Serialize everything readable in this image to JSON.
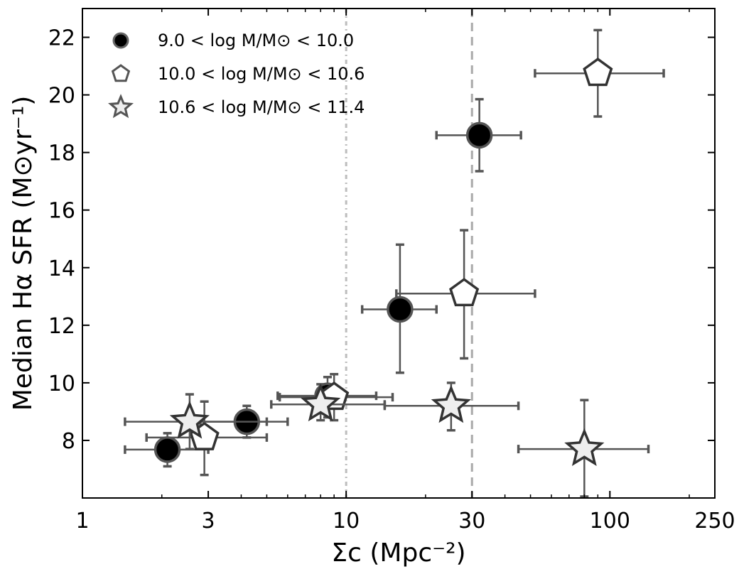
{
  "chart_data": {
    "type": "scatter",
    "title": "",
    "xlabel": "Σc (Mpc⁻²)",
    "ylabel": "Median Hα SFR (M⊙yr⁻¹)",
    "xscale": "log",
    "xlim": [
      1,
      250
    ],
    "ylim": [
      6,
      23
    ],
    "xticks": [
      1,
      3,
      10,
      30,
      100,
      250
    ],
    "xtick_labels": [
      "1",
      "3",
      "10",
      "30",
      "100",
      "250"
    ],
    "yticks": [
      8,
      10,
      12,
      14,
      16,
      18,
      20,
      22
    ],
    "ytick_labels": [
      "8",
      "10",
      "12",
      "14",
      "16",
      "18",
      "20",
      "22"
    ],
    "vlines": [
      {
        "x": 10,
        "style": "dash-dot",
        "color": "#bdbdbd"
      },
      {
        "x": 30,
        "style": "dashed",
        "color": "#aaaaaa"
      }
    ],
    "legend_position": "top-left",
    "series": [
      {
        "name": "9.0 < log M/M⊙ < 10.0",
        "marker": "circle",
        "fill": "#000000",
        "edge": "#555555",
        "points": [
          {
            "x": 2.1,
            "y": 7.68,
            "xerr": [
              1.45,
              3.0
            ],
            "yerr": [
              7.1,
              8.25
            ]
          },
          {
            "x": 4.2,
            "y": 8.65,
            "xerr": [
              2.8,
              6.0
            ],
            "yerr": [
              8.1,
              9.2
            ]
          },
          {
            "x": 8.5,
            "y": 9.55,
            "xerr": [
              5.5,
              13.0
            ],
            "yerr": [
              8.8,
              10.2
            ]
          },
          {
            "x": 16.0,
            "y": 12.55,
            "xerr": [
              11.5,
              22.0
            ],
            "yerr": [
              10.35,
              14.8
            ]
          },
          {
            "x": 32.0,
            "y": 18.6,
            "xerr": [
              22.0,
              46.0
            ],
            "yerr": [
              17.35,
              19.85
            ]
          }
        ]
      },
      {
        "name": "10.0 < log M/M⊙ < 10.6",
        "marker": "pentagon",
        "fill": "#ffffff",
        "edge": "#333333",
        "points": [
          {
            "x": 2.9,
            "y": 8.1,
            "xerr": [
              1.75,
              5.0
            ],
            "yerr": [
              6.8,
              9.35
            ]
          },
          {
            "x": 9.0,
            "y": 9.5,
            "xerr": [
              5.6,
              15.0
            ],
            "yerr": [
              8.7,
              10.3
            ]
          },
          {
            "x": 28.0,
            "y": 13.1,
            "xerr": [
              15.5,
              52.0
            ],
            "yerr": [
              10.85,
              15.3
            ]
          },
          {
            "x": 90.0,
            "y": 20.75,
            "xerr": [
              52.0,
              160.0
            ],
            "yerr": [
              19.25,
              22.25
            ]
          }
        ]
      },
      {
        "name": "10.6 < log M/M⊙ < 11.4",
        "marker": "star",
        "fill": "#eeeeee",
        "edge": "#333333",
        "points": [
          {
            "x": 2.55,
            "y": 8.65,
            "xerr": [
              1.45,
              5.0
            ],
            "yerr": [
              7.7,
              9.6
            ]
          },
          {
            "x": 8.0,
            "y": 9.25,
            "xerr": [
              5.2,
              14.0
            ],
            "yerr": [
              8.7,
              9.95
            ]
          },
          {
            "x": 25.0,
            "y": 9.2,
            "xerr": [
              14.0,
              45.0
            ],
            "yerr": [
              8.35,
              10.0
            ]
          },
          {
            "x": 80.0,
            "y": 7.7,
            "xerr": [
              45.0,
              140.0
            ],
            "yerr": [
              6.05,
              9.4
            ]
          }
        ]
      }
    ]
  }
}
